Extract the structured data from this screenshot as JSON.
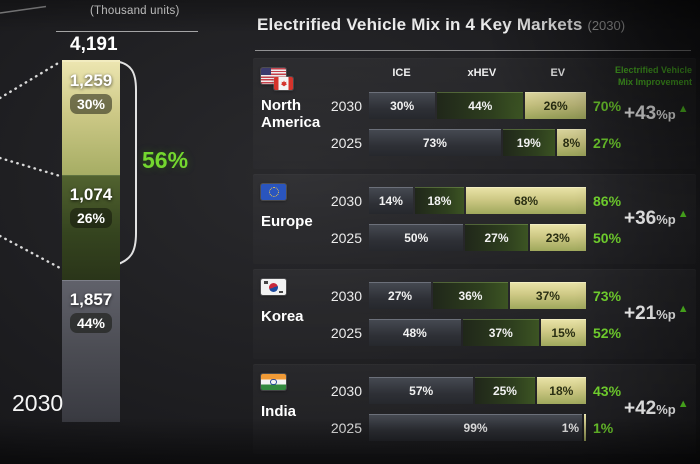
{
  "title": {
    "main": "Electrified Vehicle Mix in 4 Key Markets",
    "suffix": "(2030)"
  },
  "colors": {
    "accent_green": "#74d72f",
    "improvement_header_green": "#4fbc26",
    "ev_fill": "#cdc884",
    "xhev_fill": "#2e3f1e",
    "ice_fill": "#2e3036"
  },
  "chart_data": [
    {
      "type": "bar",
      "title": "(Thousand units)",
      "xlabel": "2030",
      "total_label": "4,191",
      "total_value": 4191,
      "highlight_pct": "56%",
      "segments": [
        {
          "name": "EV",
          "value_label": "1,259",
          "value": 1259,
          "pct_label": "30%",
          "pct": 30,
          "fill": "ev"
        },
        {
          "name": "xHEV",
          "value_label": "1,074",
          "value": 1074,
          "pct_label": "26%",
          "pct": 26,
          "fill": "xhev"
        },
        {
          "name": "ICE",
          "value_label": "1,857",
          "value": 1857,
          "pct_label": "44%",
          "pct": 44,
          "fill": "ice"
        }
      ]
    },
    {
      "type": "bar",
      "subtype": "horizontal-stacked",
      "columns": [
        "ICE",
        "xHEV",
        "EV"
      ],
      "improvement_header": [
        "Electrified Vehicle",
        "Mix Improvement"
      ],
      "markets": [
        {
          "name": "North America",
          "flags": [
            "us",
            "ca"
          ],
          "show_column_headers": true,
          "show_improvement_header": true,
          "improvement": "+43%p",
          "rows": [
            {
              "year": "2030",
              "total": "70%",
              "segments": [
                {
                  "fill": "ice",
                  "pct": 30,
                  "label": "30%"
                },
                {
                  "fill": "xhev",
                  "pct": 44,
                  "label": "44%"
                },
                {
                  "fill": "ev",
                  "pct": 26,
                  "label": "26%"
                }
              ]
            },
            {
              "year": "2025",
              "total": "27%",
              "segments": [
                {
                  "fill": "ice",
                  "pct": 73,
                  "label": "73%"
                },
                {
                  "fill": "xhev",
                  "pct": 19,
                  "label": "19%"
                },
                {
                  "fill": "ev",
                  "pct": 8,
                  "label": "8%"
                }
              ]
            }
          ]
        },
        {
          "name": "Europe",
          "flags": [
            "eu"
          ],
          "improvement": "+36%p",
          "rows": [
            {
              "year": "2030",
              "total": "86%",
              "segments": [
                {
                  "fill": "ice",
                  "pct": 14,
                  "label": "14%"
                },
                {
                  "fill": "xhev",
                  "pct": 18,
                  "label": "18%"
                },
                {
                  "fill": "ev",
                  "pct": 68,
                  "label": "68%"
                }
              ]
            },
            {
              "year": "2025",
              "total": "50%",
              "segments": [
                {
                  "fill": "ice",
                  "pct": 50,
                  "label": "50%"
                },
                {
                  "fill": "xhev",
                  "pct": 27,
                  "label": "27%"
                },
                {
                  "fill": "ev",
                  "pct": 23,
                  "label": "23%"
                }
              ]
            }
          ]
        },
        {
          "name": "Korea",
          "flags": [
            "kr"
          ],
          "improvement": "+21%p",
          "rows": [
            {
              "year": "2030",
              "total": "73%",
              "segments": [
                {
                  "fill": "ice",
                  "pct": 27,
                  "label": "27%"
                },
                {
                  "fill": "xhev",
                  "pct": 36,
                  "label": "36%"
                },
                {
                  "fill": "ev",
                  "pct": 37,
                  "label": "37%"
                }
              ]
            },
            {
              "year": "2025",
              "total": "52%",
              "segments": [
                {
                  "fill": "ice",
                  "pct": 48,
                  "label": "48%"
                },
                {
                  "fill": "xhev",
                  "pct": 37,
                  "label": "37%"
                },
                {
                  "fill": "ev",
                  "pct": 15,
                  "label": "15%"
                }
              ]
            }
          ]
        },
        {
          "name": "India",
          "flags": [
            "in"
          ],
          "improvement": "+42%p",
          "rows": [
            {
              "year": "2030",
              "total": "43%",
              "segments": [
                {
                  "fill": "ice",
                  "pct": 57,
                  "label": "57%"
                },
                {
                  "fill": "xhev",
                  "pct": 25,
                  "label": "25%"
                },
                {
                  "fill": "ev",
                  "pct": 18,
                  "label": "18%"
                }
              ]
            },
            {
              "year": "2025",
              "total": "1%",
              "segments": [
                {
                  "fill": "ice",
                  "pct": 99,
                  "label": "99%"
                },
                {
                  "fill": "ev",
                  "pct": 1,
                  "label": "1%",
                  "label_outside": true
                }
              ]
            }
          ]
        }
      ]
    }
  ]
}
